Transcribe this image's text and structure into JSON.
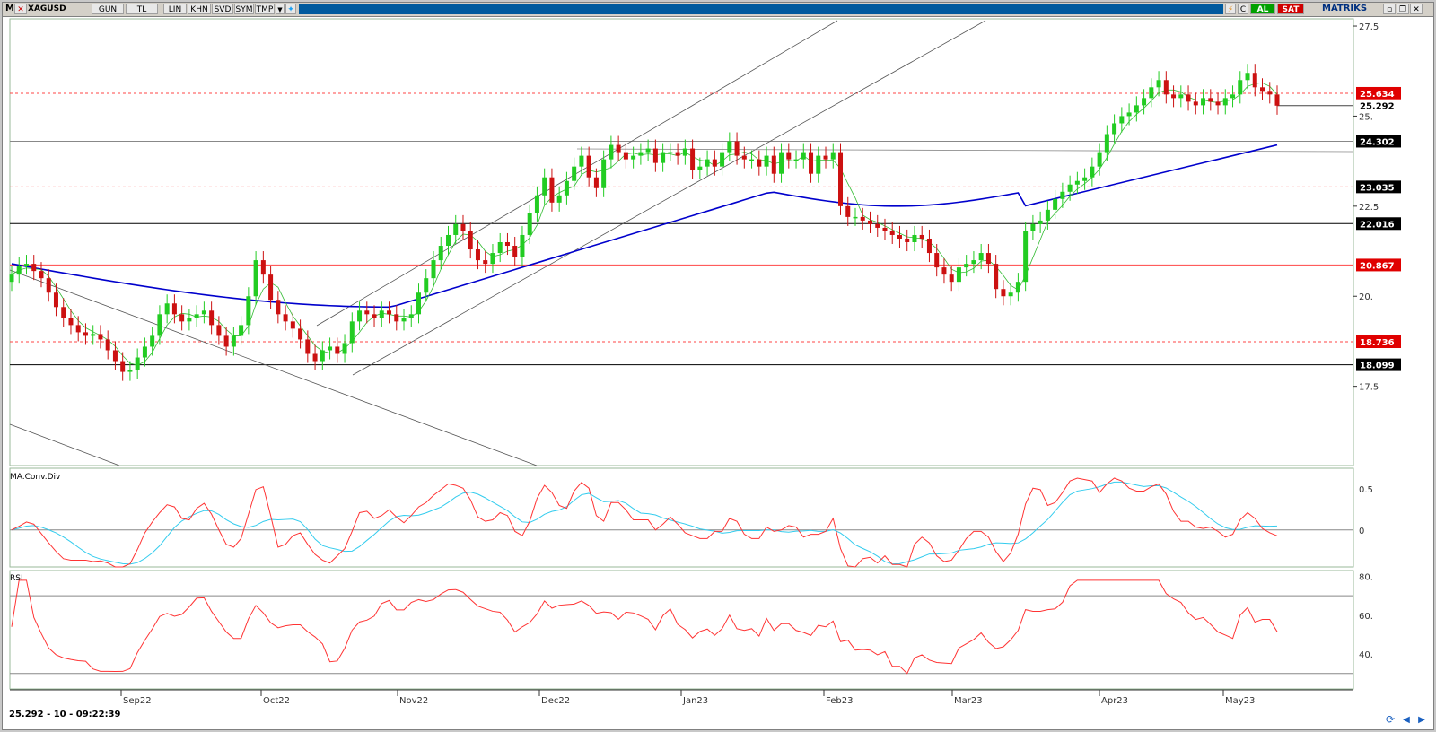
{
  "toolbar": {
    "menu_label": "M",
    "symbol": "XAGUSD",
    "buttons": [
      "GUN",
      "TL",
      "LIN",
      "KHN",
      "SVD",
      "SYM",
      "TMP"
    ],
    "buy_label": "AL",
    "sell_label": "SAT",
    "brand": "MATRIKS",
    "c_label": "C"
  },
  "status": {
    "readout": "25.292 - 10 - 09:22:39"
  },
  "panels": {
    "macd_title": "MA.Conv.Div",
    "rsi_title": "RSI"
  },
  "colors": {
    "up": "#22cc22",
    "down": "#cc1111",
    "ma": "#0000cc",
    "macd": "#ff3333",
    "signal": "#33ccee",
    "rsi": "#ff3333"
  },
  "chart_data": {
    "type": "candlestick",
    "symbol": "XAGUSD",
    "x_ticks": [
      "Sep22",
      "Oct22",
      "Nov22",
      "Dec22",
      "Jan23",
      "Feb23",
      "Mar23",
      "Apr23",
      "May23"
    ],
    "y_ticks": [
      "27.5",
      "25.",
      "22.5",
      "20.",
      "17.5"
    ],
    "ylim": [
      15.3,
      27.7
    ],
    "last_price": 25.292,
    "price_tags": [
      {
        "value": 25.634,
        "label": "25.634",
        "style": "red",
        "line": "dashed-red"
      },
      {
        "value": 25.292,
        "label": "25.292",
        "style": "plain",
        "line": "none"
      },
      {
        "value": 24.302,
        "label": "24.302",
        "style": "black",
        "line": "solid-gray"
      },
      {
        "value": 23.035,
        "label": "23.035",
        "style": "black",
        "line": "dashed-red"
      },
      {
        "value": 22.016,
        "label": "22.016",
        "style": "black",
        "line": "solid-black"
      },
      {
        "value": 20.867,
        "label": "20.867",
        "style": "red",
        "line": "solid-red"
      },
      {
        "value": 18.736,
        "label": "18.736",
        "style": "red",
        "line": "dashed-red"
      },
      {
        "value": 18.099,
        "label": "18.099",
        "style": "black",
        "line": "solid-black"
      }
    ],
    "closes": [
      20.6,
      20.85,
      20.9,
      20.7,
      20.5,
      20.1,
      19.7,
      19.4,
      19.2,
      19.0,
      18.9,
      18.95,
      18.8,
      18.5,
      18.2,
      17.9,
      17.95,
      18.3,
      18.6,
      18.9,
      19.5,
      19.8,
      19.5,
      19.3,
      19.4,
      19.5,
      19.6,
      19.2,
      18.9,
      18.6,
      18.9,
      19.2,
      20.0,
      21.0,
      20.6,
      19.9,
      19.5,
      19.3,
      19.1,
      18.8,
      18.4,
      18.2,
      18.5,
      18.6,
      18.4,
      18.7,
      19.3,
      19.6,
      19.5,
      19.4,
      19.6,
      19.5,
      19.3,
      19.4,
      19.5,
      20.1,
      20.5,
      21.0,
      21.4,
      21.7,
      22.0,
      21.8,
      21.3,
      21.0,
      20.9,
      21.2,
      21.5,
      21.4,
      21.1,
      21.7,
      22.3,
      22.8,
      23.3,
      22.6,
      22.8,
      23.2,
      23.6,
      23.9,
      23.3,
      23.0,
      23.8,
      24.2,
      24.0,
      23.8,
      23.9,
      24.0,
      24.1,
      23.7,
      24.0,
      24.0,
      23.9,
      24.1,
      23.5,
      23.6,
      23.8,
      23.6,
      24.0,
      24.3,
      23.9,
      23.8,
      23.8,
      23.6,
      23.9,
      23.4,
      24.0,
      23.8,
      23.8,
      24.0,
      23.4,
      23.9,
      23.8,
      24.0,
      22.5,
      22.2,
      22.2,
      22.1,
      22.0,
      21.9,
      21.8,
      21.7,
      21.6,
      21.5,
      21.7,
      21.6,
      21.2,
      20.8,
      20.6,
      20.4,
      20.8,
      20.9,
      21.0,
      21.2,
      20.9,
      20.2,
      20.0,
      20.1,
      20.4,
      21.8,
      22.0,
      22.1,
      22.4,
      22.7,
      22.9,
      23.1,
      23.2,
      23.3,
      23.6,
      24.0,
      24.5,
      24.8,
      25.0,
      25.1,
      25.3,
      25.5,
      25.8,
      26.0,
      25.6,
      25.5,
      25.6,
      25.4,
      25.3,
      25.5,
      25.4,
      25.3,
      25.5,
      25.6,
      26.0,
      26.2,
      25.8,
      25.7,
      25.6,
      25.29
    ],
    "ma": {
      "name": "Moving average",
      "start": 20.9,
      "end": 24.2
    },
    "macd": {
      "zero_label": "0",
      "y_ticks": [
        "0.5",
        "0"
      ],
      "ylim": [
        -0.45,
        0.75
      ]
    },
    "rsi": {
      "y_ticks": [
        "80.",
        "60.",
        "40."
      ],
      "ylim": [
        22,
        83
      ],
      "levels": [
        70,
        30
      ]
    }
  }
}
